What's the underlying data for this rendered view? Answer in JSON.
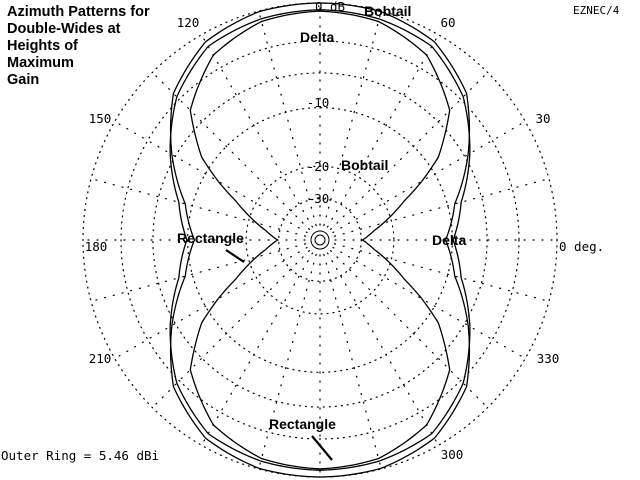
{
  "title_lines": [
    "Azimuth Patterns for",
    "Double-Wides at",
    "Heights of",
    "Maximum",
    "Gain"
  ],
  "brand": "EZNEC/4",
  "outer_ring_note": "Outer Ring = 5.46 dBi",
  "chart_data": {
    "type": "polar",
    "title": "Azimuth Patterns for Double-Wides at Heights of Maximum Gain",
    "angular_tick_labels": [
      "0 deg.",
      "30",
      "60",
      "120",
      "150",
      "180",
      "210",
      "300",
      "330"
    ],
    "radial_tick_labels": [
      "0 dB",
      "-10",
      "-20",
      "-30"
    ],
    "outer_ring_dbi": 5.46,
    "grid": "dotted",
    "series": [
      {
        "name": "Bobtail",
        "color": "#000000",
        "angles_deg": [
          0,
          15,
          30,
          45,
          60,
          75,
          90
        ],
        "values_db": [
          -10.9,
          -9.1,
          -5.6,
          -2.3,
          -0.6,
          -0.05,
          0
        ]
      },
      {
        "name": "Delta",
        "color": "#000000",
        "angles_deg": [
          0,
          15,
          30,
          45,
          60,
          75,
          90
        ],
        "values_db": [
          -9.9,
          -8.3,
          -5.4,
          -2.7,
          -1.0,
          -0.6,
          -0.5
        ]
      },
      {
        "name": "Rectangle",
        "color": "#000000",
        "angles_deg": [
          0,
          10,
          15,
          25,
          30,
          35,
          45,
          60,
          75,
          90
        ],
        "values_db": [
          -29.5,
          -25.0,
          -22.0,
          -16.0,
          -12.0,
          -8.5,
          -4.4,
          -1.8,
          -0.8,
          -0.6
        ]
      }
    ],
    "annotations": [
      {
        "text": "Bobtail",
        "near": "top"
      },
      {
        "text": "Delta",
        "near": "top"
      },
      {
        "text": "Bobtail",
        "near": "inner"
      },
      {
        "text": "Delta",
        "near": "right"
      },
      {
        "text": "Rectangle",
        "near": "left"
      },
      {
        "text": "Rectangle",
        "near": "bottom"
      }
    ]
  }
}
